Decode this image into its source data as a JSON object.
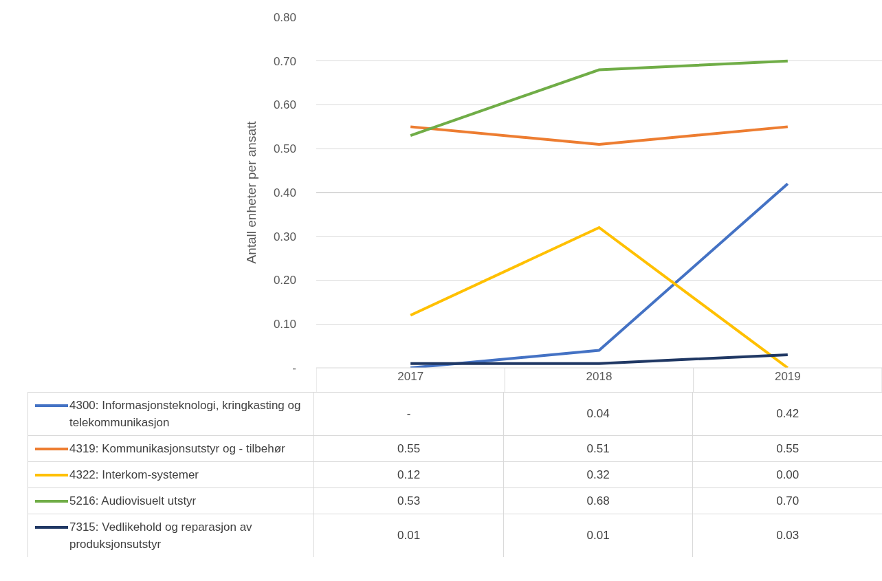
{
  "chart_data": {
    "type": "line",
    "ylabel": "Antall enheter per ansatt",
    "categories": [
      "2017",
      "2018",
      "2019"
    ],
    "ylim": [
      0,
      0.8
    ],
    "yticks": [
      {
        "value": 0,
        "label": "-"
      },
      {
        "value": 0.1,
        "label": "0.10"
      },
      {
        "value": 0.2,
        "label": "0.20"
      },
      {
        "value": 0.3,
        "label": "0.30"
      },
      {
        "value": 0.4,
        "label": "0.40"
      },
      {
        "value": 0.5,
        "label": "0.50"
      },
      {
        "value": 0.6,
        "label": "0.60"
      },
      {
        "value": 0.7,
        "label": "0.70"
      },
      {
        "value": 0.8,
        "label": "0.80"
      }
    ],
    "grid": "y",
    "legend": "bottom",
    "marker": "none",
    "line_style": "solid",
    "series": [
      {
        "name": "4300: Informasjonsteknologi, kringkasting og telekommunikasjon",
        "color": "#4472c4",
        "values": [
          0,
          0.04,
          0.42
        ],
        "value_labels": [
          "-",
          "0.04",
          "0.42"
        ]
      },
      {
        "name": "4319: Kommunikasjonsutstyr og - tilbehør",
        "color": "#ed7d31",
        "values": [
          0.55,
          0.51,
          0.55
        ],
        "value_labels": [
          "0.55",
          "0.51",
          "0.55"
        ]
      },
      {
        "name": "4322: Interkom-systemer",
        "color": "#ffc000",
        "values": [
          0.12,
          0.32,
          0
        ],
        "value_labels": [
          "0.12",
          "0.32",
          "0.00"
        ]
      },
      {
        "name": "5216: Audiovisuelt utstyr",
        "color": "#70ad47",
        "values": [
          0.53,
          0.68,
          0.7
        ],
        "value_labels": [
          "0.53",
          "0.68",
          "0.70"
        ]
      },
      {
        "name": "7315: Vedlikehold og reparasjon av produksjonsutstyr",
        "color": "#203864",
        "values": [
          0.01,
          0.01,
          0.03
        ],
        "value_labels": [
          "0.01",
          "0.01",
          "0.03"
        ]
      }
    ]
  }
}
